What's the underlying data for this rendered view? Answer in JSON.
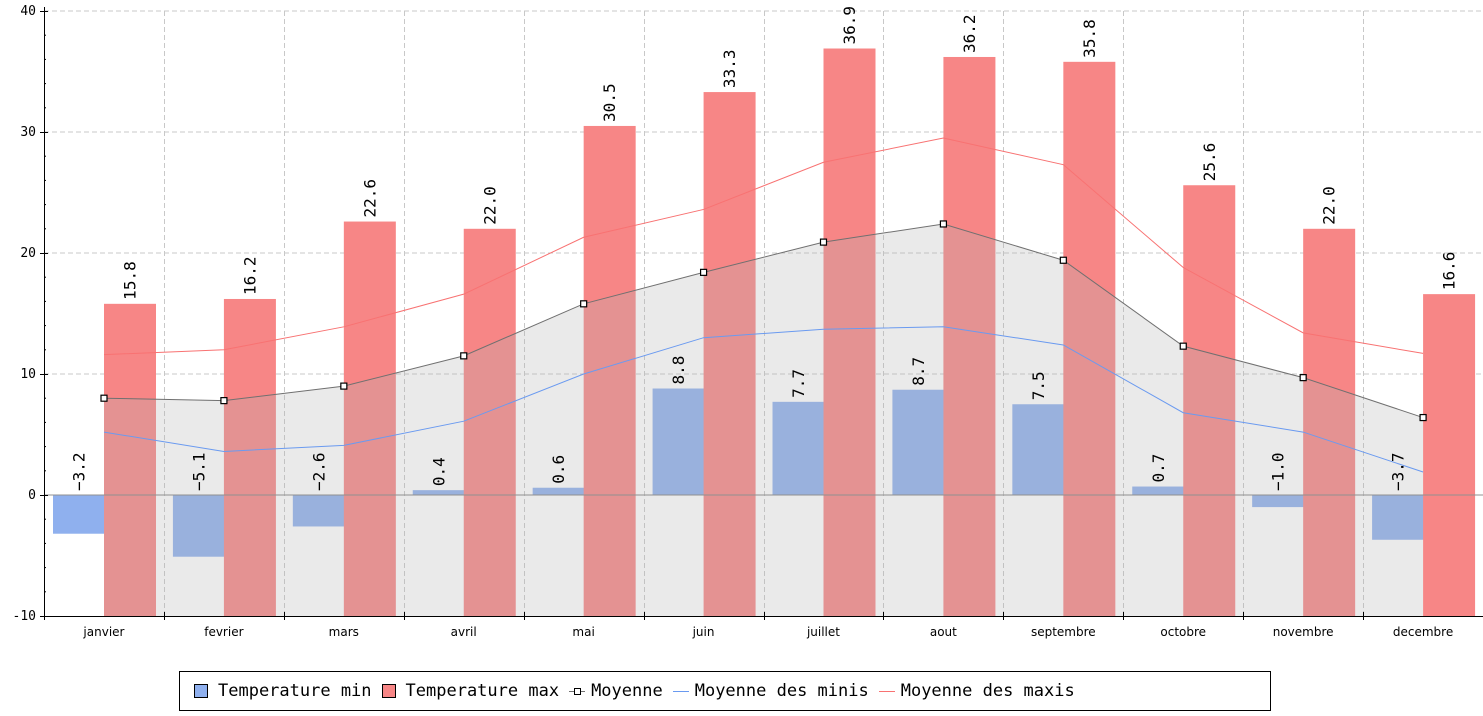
{
  "chart_data": {
    "type": "bar",
    "categories": [
      "janvier",
      "fevrier",
      "mars",
      "avril",
      "mai",
      "juin",
      "juillet",
      "aout",
      "septembre",
      "octobre",
      "novembre",
      "decembre"
    ],
    "series": [
      {
        "name": "Temperature min",
        "kind": "bar",
        "color": "#8fb0ee",
        "values": [
          -3.2,
          -5.1,
          -2.6,
          0.4,
          0.6,
          8.8,
          7.7,
          8.7,
          7.5,
          0.7,
          -1.0,
          -3.7
        ]
      },
      {
        "name": "Temperature max",
        "kind": "bar",
        "color": "#f78686",
        "values": [
          15.8,
          16.2,
          22.6,
          22.0,
          30.5,
          33.3,
          36.9,
          36.2,
          35.8,
          25.6,
          22.0,
          16.6
        ]
      },
      {
        "name": "Moyenne",
        "kind": "line-marker",
        "color": "#707070",
        "values": [
          8.0,
          7.8,
          9.0,
          11.5,
          15.8,
          18.4,
          20.9,
          22.4,
          19.4,
          12.3,
          9.7,
          6.4
        ]
      },
      {
        "name": "Moyenne des minis",
        "kind": "line",
        "color": "#6a9af0",
        "values": [
          5.2,
          3.6,
          4.1,
          6.1,
          10.0,
          13.0,
          13.7,
          13.9,
          12.4,
          6.8,
          5.2,
          1.9
        ]
      },
      {
        "name": "Moyenne des maxis",
        "kind": "line",
        "color": "#f87272",
        "values": [
          11.6,
          12.0,
          13.9,
          16.6,
          21.3,
          23.6,
          27.5,
          29.5,
          27.3,
          18.8,
          13.4,
          11.7
        ]
      }
    ],
    "ylim": [
      -10,
      40
    ],
    "yticks": [
      -10,
      0,
      10,
      20,
      30,
      40
    ],
    "grid": true,
    "legend_position": "bottom"
  },
  "legend": [
    {
      "label": "Temperature min",
      "type": "swatch",
      "color": "#8fb0ee"
    },
    {
      "label": "Temperature max",
      "type": "swatch",
      "color": "#f78686"
    },
    {
      "label": "Moyenne",
      "type": "line-marker",
      "color": "#707070"
    },
    {
      "label": "Moyenne des minis",
      "type": "line",
      "color": "#6a9af0"
    },
    {
      "label": "Moyenne des maxis",
      "type": "line",
      "color": "#f87272"
    }
  ]
}
